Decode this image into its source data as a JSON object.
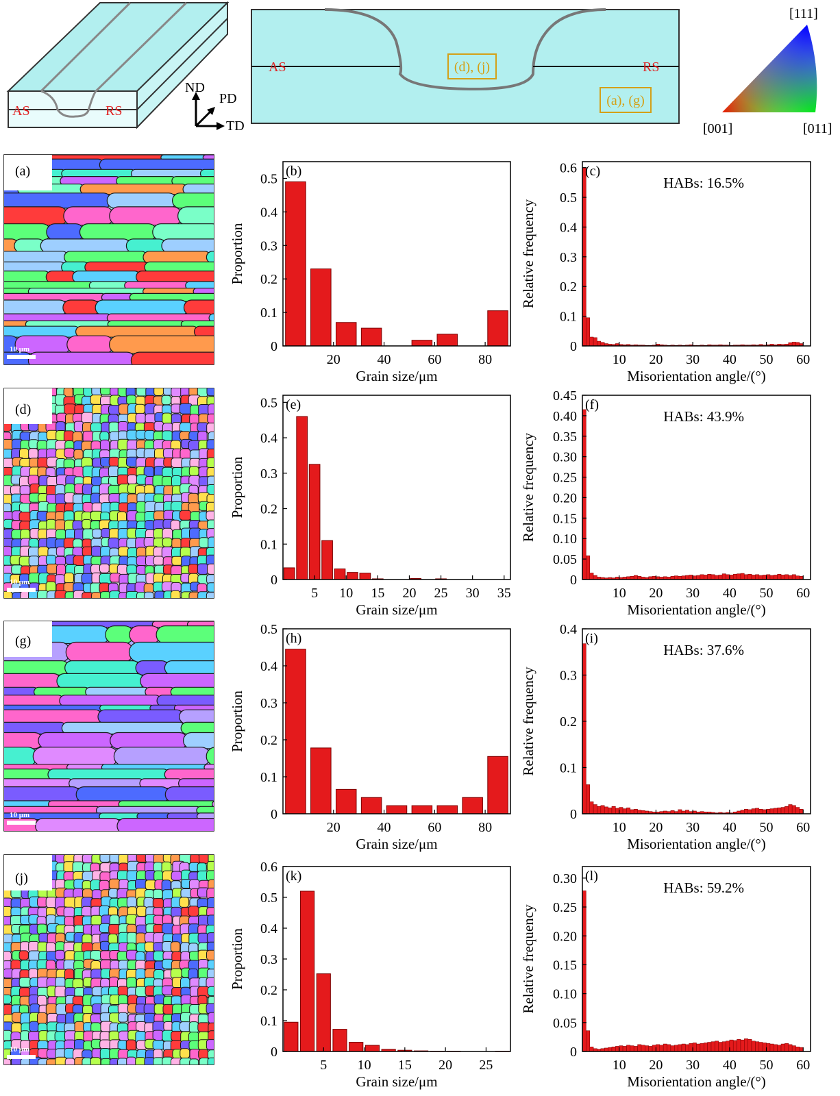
{
  "header": {
    "as_label": "AS",
    "rs_label": "RS",
    "axes": {
      "nd": "ND",
      "pd": "PD",
      "td": "TD"
    },
    "box_dj": "(d), (j)",
    "box_ag": "(a), (g)",
    "ipf": {
      "top": "[111]",
      "left": "[001]",
      "right": "[011]"
    }
  },
  "colors": {
    "bar": "#e41a1c",
    "bar_edge": "#7a0000",
    "annotation": "#e02020",
    "box": "#d4a017",
    "plate_face": "#b2efef"
  },
  "maps": [
    {
      "label": "(a)",
      "scale": "10 μm",
      "kind": "coarse-elongated"
    },
    {
      "label": "(d)",
      "scale": "10 μm",
      "kind": "fine-equiaxed"
    },
    {
      "label": "(g)",
      "scale": "10 μm",
      "kind": "coarse-elongated"
    },
    {
      "label": "(j)",
      "scale": "10 μm",
      "kind": "fine-equiaxed"
    }
  ],
  "chart_data": [
    {
      "id": "b",
      "panel_label": "(b)",
      "type": "bar",
      "xlabel": "Grain size/μm",
      "ylabel": "Proportion",
      "xlim": [
        0,
        90
      ],
      "ylim": [
        0,
        0.55
      ],
      "xticks": [
        20,
        40,
        60,
        80
      ],
      "yticks": [
        0,
        0.1,
        0.2,
        0.3,
        0.4,
        0.5
      ],
      "ytick_labels": [
        "0",
        "0.1",
        "0.2",
        "0.3",
        "0.4",
        "0.5"
      ],
      "bin_width": 8,
      "x": [
        5,
        15,
        25,
        35,
        45,
        55,
        65,
        75,
        85
      ],
      "values": [
        0.49,
        0.23,
        0.07,
        0.053,
        0.0,
        0.017,
        0.035,
        0.0,
        0.105
      ]
    },
    {
      "id": "c",
      "panel_label": "(c)",
      "type": "bar",
      "xlabel": "Misorientation angle/(°)",
      "ylabel": "Relative frequency",
      "annotation": "HABs: 16.5%",
      "xlim": [
        0,
        62
      ],
      "ylim": [
        0,
        0.62
      ],
      "xticks": [
        10,
        20,
        30,
        40,
        50,
        60
      ],
      "yticks": [
        0,
        0.1,
        0.2,
        0.3,
        0.4,
        0.5,
        0.6
      ],
      "ytick_labels": [
        "0",
        "0.1",
        "0.2",
        "0.3",
        "0.4",
        "0.5",
        "0.6"
      ],
      "bin_width": 1,
      "x_start": 0.5,
      "x_step": 1,
      "values": [
        0.6,
        0.095,
        0.03,
        0.028,
        0.016,
        0.012,
        0.008,
        0.006,
        0.005,
        0.008,
        0.005,
        0.004,
        0.005,
        0.003,
        0.004,
        0.003,
        0.003,
        0.002,
        0.002,
        0.003,
        0.006,
        0.004,
        0.003,
        0.002,
        0.003,
        0.002,
        0.003,
        0.002,
        0.003,
        0.004,
        0.002,
        0.002,
        0.003,
        0.002,
        0.004,
        0.003,
        0.003,
        0.004,
        0.003,
        0.003,
        0.002,
        0.003,
        0.003,
        0.004,
        0.003,
        0.003,
        0.004,
        0.003,
        0.005,
        0.003,
        0.004,
        0.006,
        0.004,
        0.006,
        0.005,
        0.006,
        0.011,
        0.013,
        0.012,
        0.008
      ]
    },
    {
      "id": "e",
      "panel_label": "(e)",
      "type": "bar",
      "xlabel": "Grain size/μm",
      "ylabel": "Proportion",
      "xlim": [
        0,
        36
      ],
      "ylim": [
        0,
        0.52
      ],
      "xticks": [
        5,
        10,
        15,
        20,
        25,
        30,
        35
      ],
      "yticks": [
        0,
        0.1,
        0.2,
        0.3,
        0.4,
        0.5
      ],
      "ytick_labels": [
        "0",
        "0.1",
        "0.2",
        "0.3",
        "0.4",
        "0.5"
      ],
      "bin_width": 1.7,
      "x": [
        1,
        3,
        5,
        7,
        9,
        11,
        13,
        15,
        17,
        19,
        21,
        23,
        25,
        27,
        29,
        31,
        33,
        35
      ],
      "values": [
        0.033,
        0.46,
        0.325,
        0.11,
        0.03,
        0.02,
        0.018,
        0.002,
        0.0,
        0.0,
        0.003,
        0.0,
        0.002,
        0.0,
        0.0,
        0.0,
        0.0,
        0.0
      ]
    },
    {
      "id": "f",
      "panel_label": "(f)",
      "type": "bar",
      "xlabel": "Misorientation angle/(°)",
      "ylabel": "Relative frequency",
      "annotation": "HABs: 43.9%",
      "xlim": [
        0,
        62
      ],
      "ylim": [
        0,
        0.45
      ],
      "xticks": [
        10,
        20,
        30,
        40,
        50,
        60
      ],
      "yticks": [
        0,
        0.05,
        0.1,
        0.15,
        0.2,
        0.25,
        0.3,
        0.35,
        0.4,
        0.45
      ],
      "ytick_labels": [
        "0",
        "0.05",
        "0.10",
        "0.15",
        "0.20",
        "0.25",
        "0.30",
        "0.35",
        "0.40",
        "0.45"
      ],
      "bin_width": 1,
      "x_start": 0.5,
      "x_step": 1,
      "values": [
        0.415,
        0.058,
        0.016,
        0.01,
        0.006,
        0.005,
        0.004,
        0.005,
        0.004,
        0.006,
        0.005,
        0.006,
        0.007,
        0.008,
        0.01,
        0.008,
        0.006,
        0.005,
        0.007,
        0.008,
        0.007,
        0.006,
        0.007,
        0.006,
        0.008,
        0.009,
        0.008,
        0.009,
        0.01,
        0.011,
        0.009,
        0.01,
        0.012,
        0.011,
        0.013,
        0.012,
        0.01,
        0.011,
        0.014,
        0.012,
        0.011,
        0.013,
        0.014,
        0.015,
        0.012,
        0.013,
        0.011,
        0.012,
        0.01,
        0.011,
        0.012,
        0.01,
        0.011,
        0.013,
        0.011,
        0.012,
        0.01,
        0.012,
        0.009,
        0.008
      ]
    },
    {
      "id": "h",
      "panel_label": "(h)",
      "type": "bar",
      "xlabel": "Grain size/μm",
      "ylabel": "Proportion",
      "xlim": [
        0,
        90
      ],
      "ylim": [
        0,
        0.5
      ],
      "xticks": [
        20,
        40,
        60,
        80
      ],
      "yticks": [
        0,
        0.1,
        0.2,
        0.3,
        0.4,
        0.5
      ],
      "ytick_labels": [
        "0",
        "0.1",
        "0.2",
        "0.3",
        "0.4",
        "0.5"
      ],
      "bin_width": 8,
      "x": [
        5,
        15,
        25,
        35,
        45,
        55,
        65,
        75,
        85
      ],
      "values": [
        0.445,
        0.178,
        0.066,
        0.044,
        0.022,
        0.022,
        0.022,
        0.044,
        0.155
      ]
    },
    {
      "id": "i",
      "panel_label": "(i)",
      "type": "bar",
      "xlabel": "Misorientation angle/(°)",
      "ylabel": "Relative frequency",
      "annotation": "HABs: 37.6%",
      "xlim": [
        0,
        62
      ],
      "ylim": [
        0,
        0.4
      ],
      "xticks": [
        10,
        20,
        30,
        40,
        50,
        60
      ],
      "yticks": [
        0,
        0.1,
        0.2,
        0.3,
        0.4
      ],
      "ytick_labels": [
        "0",
        "0.1",
        "0.2",
        "0.3",
        "0.4"
      ],
      "bin_width": 1,
      "x_start": 0.5,
      "x_step": 1,
      "values": [
        0.368,
        0.063,
        0.026,
        0.02,
        0.016,
        0.018,
        0.015,
        0.013,
        0.016,
        0.012,
        0.014,
        0.011,
        0.013,
        0.009,
        0.01,
        0.008,
        0.007,
        0.006,
        0.005,
        0.004,
        0.004,
        0.005,
        0.006,
        0.005,
        0.007,
        0.005,
        0.009,
        0.006,
        0.008,
        0.005,
        0.006,
        0.004,
        0.005,
        0.004,
        0.004,
        0.003,
        0.002,
        0.003,
        0.002,
        0.003,
        0.002,
        0.004,
        0.006,
        0.008,
        0.01,
        0.009,
        0.011,
        0.012,
        0.01,
        0.009,
        0.01,
        0.011,
        0.012,
        0.013,
        0.014,
        0.016,
        0.02,
        0.018,
        0.014,
        0.01
      ]
    },
    {
      "id": "k",
      "panel_label": "(k)",
      "type": "bar",
      "xlabel": "Grain size/μm",
      "ylabel": "Proportion",
      "xlim": [
        0,
        28
      ],
      "ylim": [
        0,
        0.6
      ],
      "xticks": [
        5,
        10,
        15,
        20,
        25
      ],
      "yticks": [
        0,
        0.1,
        0.2,
        0.3,
        0.4,
        0.5,
        0.6
      ],
      "ytick_labels": [
        "0",
        "0.1",
        "0.2",
        "0.3",
        "0.4",
        "0.5",
        "0.6"
      ],
      "bin_width": 1.7,
      "x": [
        1,
        3,
        5,
        7,
        9,
        11,
        13,
        15,
        17,
        19,
        21,
        23,
        25,
        27
      ],
      "values": [
        0.095,
        0.52,
        0.252,
        0.072,
        0.03,
        0.02,
        0.007,
        0.004,
        0.002,
        0.001,
        0.001,
        0.0,
        0.0,
        0.001
      ]
    },
    {
      "id": "l",
      "panel_label": "(l)",
      "type": "bar",
      "xlabel": "Misorientation angle/(°)",
      "ylabel": "Relative frequency",
      "annotation": "HABs: 59.2%",
      "xlim": [
        0,
        62
      ],
      "ylim": [
        0,
        0.32
      ],
      "xticks": [
        10,
        20,
        30,
        40,
        50,
        60
      ],
      "yticks": [
        0,
        0.05,
        0.1,
        0.15,
        0.2,
        0.25,
        0.3
      ],
      "ytick_labels": [
        "0",
        "0.05",
        "0.10",
        "0.15",
        "0.20",
        "0.25",
        "0.30"
      ],
      "bin_width": 1,
      "x_start": 0.5,
      "x_step": 1,
      "values": [
        0.278,
        0.036,
        0.008,
        0.005,
        0.004,
        0.005,
        0.006,
        0.007,
        0.008,
        0.009,
        0.01,
        0.009,
        0.011,
        0.01,
        0.009,
        0.012,
        0.011,
        0.01,
        0.009,
        0.011,
        0.012,
        0.011,
        0.013,
        0.012,
        0.01,
        0.011,
        0.012,
        0.013,
        0.012,
        0.014,
        0.015,
        0.013,
        0.014,
        0.015,
        0.016,
        0.017,
        0.018,
        0.016,
        0.017,
        0.018,
        0.02,
        0.019,
        0.021,
        0.02,
        0.022,
        0.021,
        0.018,
        0.017,
        0.016,
        0.015,
        0.014,
        0.013,
        0.012,
        0.011,
        0.013,
        0.014,
        0.012,
        0.01,
        0.008,
        0.007
      ]
    }
  ]
}
